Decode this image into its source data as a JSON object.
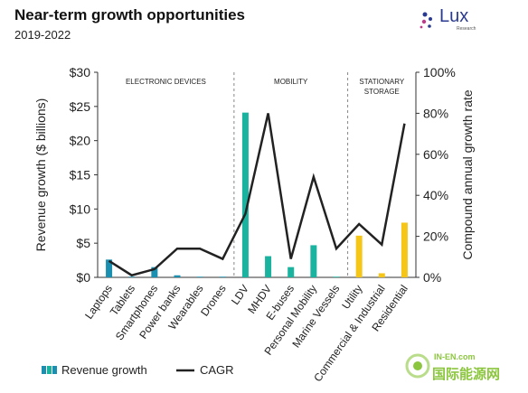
{
  "header": {
    "title": "Near-term growth opportunities",
    "subtitle": "2019-2022"
  },
  "logo": {
    "text": "Lux",
    "sub": "Research"
  },
  "watermark": {
    "top": "IN-EN.com",
    "bottom": "国际能源网"
  },
  "colors": {
    "electronic": "#1a8fb0",
    "mobility": "#1ab3a0",
    "stationary": "#f5c518",
    "cagr": "#222222",
    "divider": "#888888"
  },
  "chart_data": {
    "type": "bar",
    "categories": [
      "Laptops",
      "Tablets",
      "Smartphones",
      "Power banks",
      "Wearables",
      "Drones",
      "LDV",
      "MHDV",
      "E-buses",
      "Personal Mobility",
      "Marine Vessels",
      "Utility",
      "Commercial & Industrial",
      "Residential"
    ],
    "groups": [
      {
        "label": "ELECTRONIC DEVICES",
        "start": 0,
        "end": 5
      },
      {
        "label": "MOBILITY",
        "start": 6,
        "end": 10
      },
      {
        "label": "STATIONARY STORAGE",
        "start": 11,
        "end": 13
      }
    ],
    "series": [
      {
        "name": "Revenue growth",
        "axis": "left",
        "kind": "bar",
        "values": [
          2.6,
          0.1,
          1.5,
          0.3,
          0.1,
          0.1,
          24.1,
          3.1,
          1.5,
          4.7,
          0.1,
          6.1,
          0.6,
          8.0
        ]
      },
      {
        "name": "CAGR",
        "axis": "right",
        "kind": "line",
        "values": [
          8,
          1,
          4,
          14,
          14,
          9,
          31,
          80,
          9,
          49,
          14,
          26,
          16,
          75
        ]
      }
    ],
    "y_left": {
      "label": "Revenue growth ($ billions)",
      "ticks": [
        "$0",
        "$5",
        "$10",
        "$15",
        "$20",
        "$25",
        "$30"
      ],
      "range": [
        0,
        30
      ]
    },
    "y_right": {
      "label": "Compound annual growth rate",
      "ticks": [
        "0%",
        "20%",
        "40%",
        "60%",
        "80%",
        "100%"
      ],
      "range": [
        0,
        100
      ]
    },
    "grid": false,
    "legend": {
      "position": "bottom-left",
      "bar_label": "Revenue growth",
      "line_label": "CAGR"
    }
  }
}
